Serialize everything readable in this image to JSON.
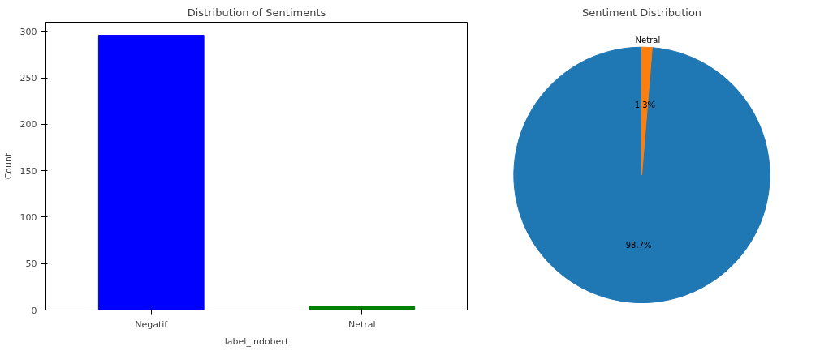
{
  "chart_data": [
    {
      "type": "bar",
      "title": "Distribution of Sentiments",
      "xlabel": "label_indobert",
      "ylabel": "Count",
      "categories": [
        "Negatif",
        "Netral"
      ],
      "values": [
        296,
        4
      ],
      "colors": [
        "#0000ff",
        "#008000"
      ],
      "ylim": [
        0,
        310
      ],
      "yticks": [
        0,
        50,
        100,
        150,
        200,
        250,
        300
      ],
      "grid": false
    },
    {
      "type": "pie",
      "title": "Sentiment Distribution",
      "categories": [
        null,
        "Netral"
      ],
      "values": [
        98.7,
        1.3
      ],
      "colors": [
        "#1f77b4",
        "#ff7f0e"
      ],
      "value_labels": [
        "98.7%",
        "1.3%"
      ]
    }
  ]
}
